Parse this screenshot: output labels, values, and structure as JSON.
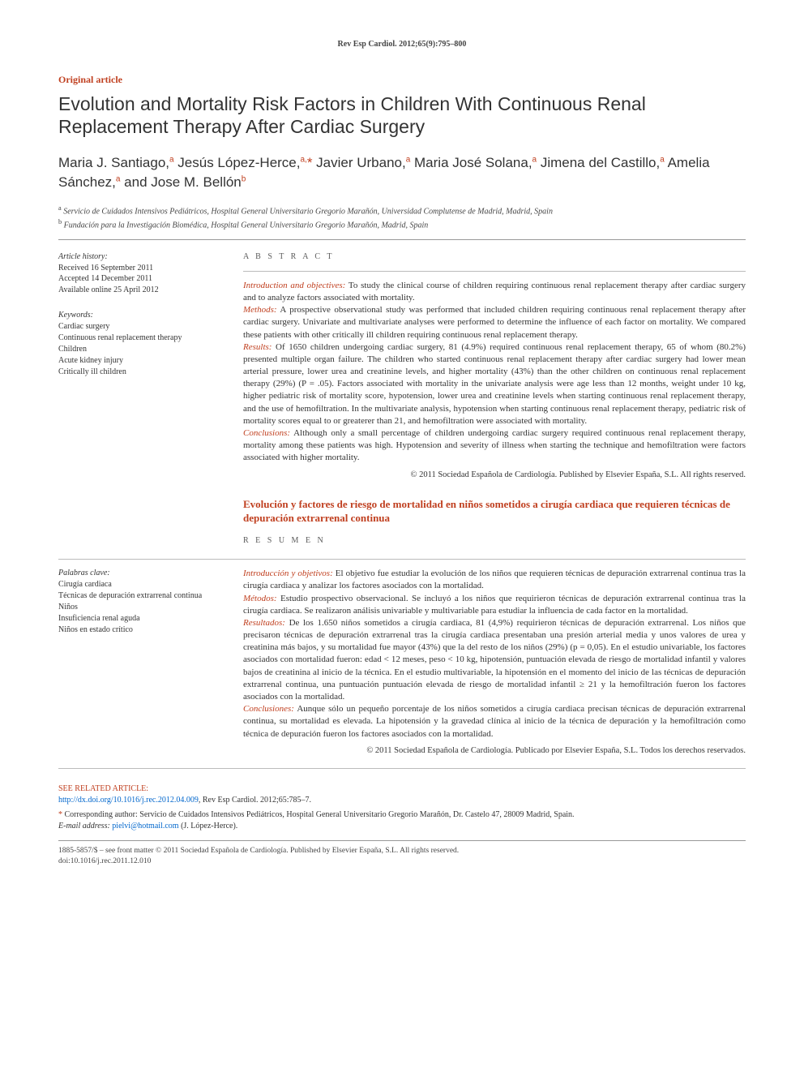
{
  "journal_ref": "Rev Esp Cardiol. 2012;65(9):795–800",
  "article_type": "Original article",
  "title": "Evolution and Mortality Risk Factors in Children With Continuous Renal Replacement Therapy After Cardiac Surgery",
  "authors_html": "Maria J. Santiago,<sup>a</sup> Jesús López-Herce,<sup>a,</sup><span class='star'>*</span> Javier Urbano,<sup>a</sup> Maria José Solana,<sup>a</sup> Jimena del Castillo,<sup>a</sup> Amelia Sánchez,<sup>a</sup> and Jose M. Bellón<sup>b</sup>",
  "affiliations": [
    {
      "sup": "a",
      "text": "Servicio de Cuidados Intensivos Pediátricos, Hospital General Universitario Gregorio Marañón, Universidad Complutense de Madrid, Madrid, Spain"
    },
    {
      "sup": "b",
      "text": "Fundación para la Investigación Biomédica, Hospital General Universitario Gregorio Marañón, Madrid, Spain"
    }
  ],
  "history": {
    "label": "Article history:",
    "received": "Received 16 September 2011",
    "accepted": "Accepted 14 December 2011",
    "online": "Available online 25 April 2012"
  },
  "keywords_en": {
    "label": "Keywords:",
    "items": [
      "Cardiac surgery",
      "Continuous renal replacement therapy",
      "Children",
      "Acute kidney injury",
      "Critically ill children"
    ]
  },
  "keywords_es": {
    "label": "Palabras clave:",
    "items": [
      "Cirugía cardiaca",
      "Técnicas de depuración extrarrenal continua",
      "Niños",
      "Insuficiencia renal aguda",
      "Niños en estado crítico"
    ]
  },
  "abstract_en": {
    "heading": "A B S T R A C T",
    "sections": [
      {
        "runin": "Introduction and objectives:",
        "text": " To study the clinical course of children requiring continuous renal replacement therapy after cardiac surgery and to analyze factors associated with mortality."
      },
      {
        "runin": "Methods:",
        "text": " A prospective observational study was performed that included children requiring continuous renal replacement therapy after cardiac surgery. Univariate and multivariate analyses were performed to determine the influence of each factor on mortality. We compared these patients with other critically ill children requiring continuous renal replacement therapy."
      },
      {
        "runin": "Results:",
        "text": " Of 1650 children undergoing cardiac surgery, 81 (4.9%) required continuous renal replacement therapy, 65 of whom (80.2%) presented multiple organ failure. The children who started continuous renal replacement therapy after cardiac surgery had lower mean arterial pressure, lower urea and creatinine levels, and higher mortality (43%) than the other children on continuous renal replacement therapy (29%) (P = .05). Factors associated with mortality in the univariate analysis were age less than 12 months, weight under 10 kg, higher pediatric risk of mortality score, hypotension, lower urea and creatinine levels when starting continuous renal replacement therapy, and the use of hemofiltration. In the multivariate analysis, hypotension when starting continuous renal replacement therapy, pediatric risk of mortality scores equal to or greaterer than 21, and hemofiltration were associated with mortality."
      },
      {
        "runin": "Conclusions:",
        "text": " Although only a small percentage of children undergoing cardiac surgery required continuous renal replacement therapy, mortality among these patients was high. Hypotension and severity of illness when starting the technique and hemofiltration were factors associated with higher mortality."
      }
    ],
    "copyright": "© 2011 Sociedad Española de Cardiología. Published by Elsevier España, S.L. All rights reserved."
  },
  "es_title": "Evolución y factores de riesgo de mortalidad en niños sometidos a cirugía cardiaca que requieren técnicas de depuración extrarrenal continua",
  "abstract_es": {
    "heading": "R E S U M E N",
    "sections": [
      {
        "runin": "Introducción y objetivos:",
        "text": " El objetivo fue estudiar la evolución de los niños que requieren técnicas de depuración extrarrenal continua tras la cirugía cardiaca y analizar los factores asociados con la mortalidad."
      },
      {
        "runin": "Métodos:",
        "text": " Estudio prospectivo observacional. Se incluyó a los niños que requirieron técnicas de depuración extrarrenal continua tras la cirugía cardiaca. Se realizaron análisis univariable y multivariable para estudiar la influencia de cada factor en la mortalidad."
      },
      {
        "runin": "Resultados:",
        "text": " De los 1.650 niños sometidos a cirugía cardiaca, 81 (4,9%) requirieron técnicas de depuración extrarrenal. Los niños que precisaron técnicas de depuración extrarrenal tras la cirugía cardiaca presentaban una presión arterial media y unos valores de urea y creatinina más bajos, y su mortalidad fue mayor (43%) que la del resto de los niños (29%) (p = 0,05). En el estudio univariable, los factores asociados con mortalidad fueron: edad < 12 meses, peso < 10 kg, hipotensión, puntuación elevada de riesgo de mortalidad infantil y valores bajos de creatinina al inicio de la técnica. En el estudio multivariable, la hipotensión en el momento del inicio de las técnicas de depuración extrarrenal continua, una puntuación puntuación elevada de riesgo de mortalidad infantil ≥ 21 y la hemofiltración fueron los factores asociados con la mortalidad."
      },
      {
        "runin": "Conclusiones:",
        "text": " Aunque sólo un pequeño porcentaje de los niños sometidos a cirugía cardiaca precisan técnicas de depuración extrarrenal continua, su mortalidad es elevada. La hipotensión y la gravedad clínica al inicio de la técnica de depuración y la hemofiltración como técnica de depuración fueron los factores asociados con la mortalidad."
      }
    ],
    "copyright": "© 2011 Sociedad Española de Cardiología. Publicado por Elsevier España, S.L. Todos los derechos reservados."
  },
  "related": {
    "label": "SEE RELATED ARTICLE:",
    "link_text": "http://dx.doi.org/10.1016/j.rec.2012.04.009",
    "cite": ", Rev Esp Cardiol. 2012;65:785–7."
  },
  "corresponding": {
    "text": "Corresponding author: Servicio de Cuidados Intensivos Pediátricos, Hospital General Universitario Gregorio Marañón, Dr. Castelo 47, 28009 Madrid, Spain.",
    "email_label": "E-mail address:",
    "email": "pielvi@hotmail.com",
    "author": "(J. López-Herce)."
  },
  "front_matter": {
    "line1": "1885-5857/$ – see front matter © 2011 Sociedad Española de Cardiología. Published by Elsevier España, S.L. All rights reserved.",
    "line2": "doi:10.1016/j.rec.2011.12.010"
  },
  "colors": {
    "accent": "#c04020",
    "text": "#333333",
    "link": "#0066cc",
    "rule": "#999999"
  }
}
